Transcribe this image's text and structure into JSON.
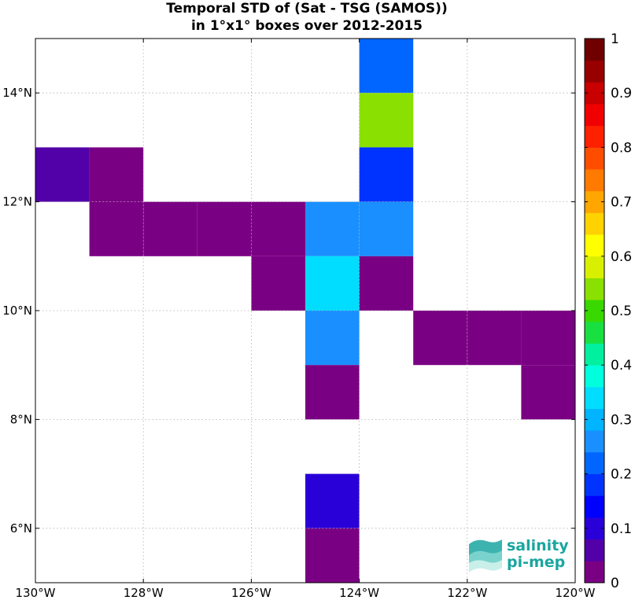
{
  "chart_data": {
    "type": "heatmap",
    "title_line1": "Temporal STD of (Sat - TSG (SAMOS))",
    "title_line2": "in 1°x1° boxes over 2012-2015",
    "xlim": [
      -130,
      -120
    ],
    "ylim": [
      5,
      15
    ],
    "x_ticks": [
      -130,
      -128,
      -126,
      -124,
      -122,
      -120
    ],
    "x_tick_labels": [
      "130°W",
      "128°W",
      "126°W",
      "124°W",
      "122°W",
      "120°W"
    ],
    "y_ticks": [
      6,
      8,
      10,
      12,
      14
    ],
    "y_tick_labels": [
      "6°N",
      "8°N",
      "10°N",
      "12°N",
      "14°N"
    ],
    "grid": true,
    "colorbar": {
      "range": [
        0,
        1
      ],
      "ticks": [
        0,
        0.1,
        0.2,
        0.3,
        0.4,
        0.5,
        0.6,
        0.7,
        0.8,
        0.9,
        1
      ],
      "tick_labels": [
        "0",
        "0.1",
        "0.2",
        "0.3",
        "0.4",
        "0.5",
        "0.6",
        "0.7",
        "0.8",
        "0.9",
        "1"
      ],
      "colors": [
        "#7a0083",
        "#5200a8",
        "#2a00d8",
        "#0000ff",
        "#0033ff",
        "#0066ff",
        "#1a8fff",
        "#00b4ff",
        "#00ddff",
        "#00ffdd",
        "#00f0a0",
        "#18e040",
        "#38d800",
        "#8ae000",
        "#d8f000",
        "#ffff00",
        "#ffd200",
        "#ffa600",
        "#ff7a00",
        "#ff4d00",
        "#ff2000",
        "#f00000",
        "#c80000",
        "#980000",
        "#700000"
      ]
    },
    "cells": [
      {
        "lon": -123.5,
        "lat": 14.5,
        "value": 0.22
      },
      {
        "lon": -123.5,
        "lat": 13.5,
        "value": 0.52
      },
      {
        "lon": -123.5,
        "lat": 12.5,
        "value": 0.17
      },
      {
        "lon": -129.5,
        "lat": 12.5,
        "value": 0.07
      },
      {
        "lon": -128.5,
        "lat": 12.5,
        "value": 0.01
      },
      {
        "lon": -128.5,
        "lat": 11.5,
        "value": 0.01
      },
      {
        "lon": -127.5,
        "lat": 11.5,
        "value": 0.01
      },
      {
        "lon": -126.5,
        "lat": 11.5,
        "value": 0.01
      },
      {
        "lon": -125.5,
        "lat": 11.5,
        "value": 0.01
      },
      {
        "lon": -124.5,
        "lat": 11.5,
        "value": 0.26
      },
      {
        "lon": -123.5,
        "lat": 11.5,
        "value": 0.27
      },
      {
        "lon": -125.5,
        "lat": 10.5,
        "value": 0.01
      },
      {
        "lon": -124.5,
        "lat": 10.5,
        "value": 0.32
      },
      {
        "lon": -123.5,
        "lat": 10.5,
        "value": 0.01
      },
      {
        "lon": -124.5,
        "lat": 9.5,
        "value": 0.26
      },
      {
        "lon": -122.5,
        "lat": 9.5,
        "value": 0.01
      },
      {
        "lon": -121.5,
        "lat": 9.5,
        "value": 0.01
      },
      {
        "lon": -120.5,
        "lat": 9.5,
        "value": 0.01
      },
      {
        "lon": -124.5,
        "lat": 8.5,
        "value": 0.01
      },
      {
        "lon": -120.5,
        "lat": 8.5,
        "value": 0.01
      },
      {
        "lon": -124.5,
        "lat": 6.5,
        "value": 0.08
      },
      {
        "lon": -124.5,
        "lat": 5.5,
        "value": 0.01
      }
    ]
  },
  "logo": {
    "line1": "salinity",
    "line2": "pi-mep",
    "color": "#1aa6a0"
  }
}
